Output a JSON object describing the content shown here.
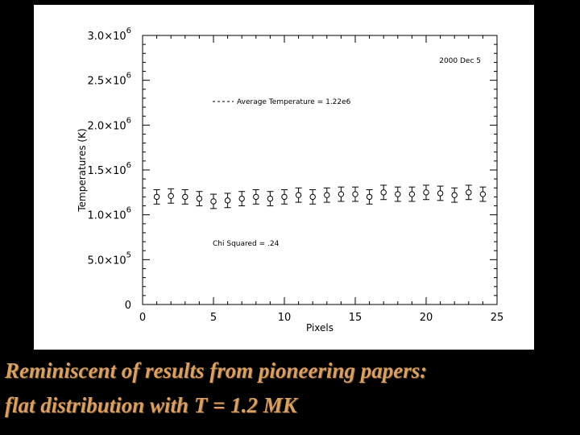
{
  "chart_data": {
    "type": "scatter",
    "xlabel": "Pixels",
    "ylabel": "Temperatures (K)",
    "xlim": [
      0,
      25
    ],
    "ylim": [
      0,
      3000000
    ],
    "xticks": [
      0,
      5,
      10,
      15,
      20,
      25
    ],
    "xtick_labels": [
      "0",
      "5",
      "10",
      "15",
      "20",
      "25"
    ],
    "yticks": [
      0,
      500000,
      1000000,
      1500000,
      2000000,
      2500000,
      3000000
    ],
    "ytick_labels": [
      {
        "mantissa": "0",
        "exp": ""
      },
      {
        "mantissa": "5.0×10",
        "exp": "5"
      },
      {
        "mantissa": "1.0×10",
        "exp": "6"
      },
      {
        "mantissa": "1.5×10",
        "exp": "6"
      },
      {
        "mantissa": "2.0×10",
        "exp": "6"
      },
      {
        "mantissa": "2.5×10",
        "exp": "6"
      },
      {
        "mantissa": "3.0×10",
        "exp": "6"
      }
    ],
    "date_annotation": "2000 Dec 5",
    "average_label": "Average Temperature = 1.22e6",
    "average_value": 1220000,
    "chi_label": "Chi Squared = .24",
    "x": [
      1,
      2,
      3,
      4,
      5,
      6,
      7,
      8,
      9,
      10,
      11,
      12,
      13,
      14,
      15,
      16,
      17,
      18,
      19,
      20,
      21,
      22,
      23,
      24
    ],
    "y": [
      1200000,
      1210000,
      1200000,
      1180000,
      1150000,
      1160000,
      1180000,
      1200000,
      1180000,
      1200000,
      1220000,
      1200000,
      1220000,
      1230000,
      1230000,
      1200000,
      1250000,
      1230000,
      1230000,
      1250000,
      1240000,
      1220000,
      1250000,
      1230000
    ],
    "yerr": [
      80000,
      80000,
      80000,
      80000,
      80000,
      80000,
      80000,
      80000,
      80000,
      80000,
      80000,
      80000,
      80000,
      80000,
      80000,
      80000,
      80000,
      80000,
      80000,
      80000,
      80000,
      80000,
      80000,
      80000
    ]
  },
  "caption": {
    "line1": "Reminiscent of results from pioneering papers:",
    "line2": "flat distribution  with T = 1.2 MK"
  },
  "colors": {
    "background": "#000000",
    "panel": "#ffffff",
    "ink": "#000000",
    "caption": "#d9a066"
  }
}
